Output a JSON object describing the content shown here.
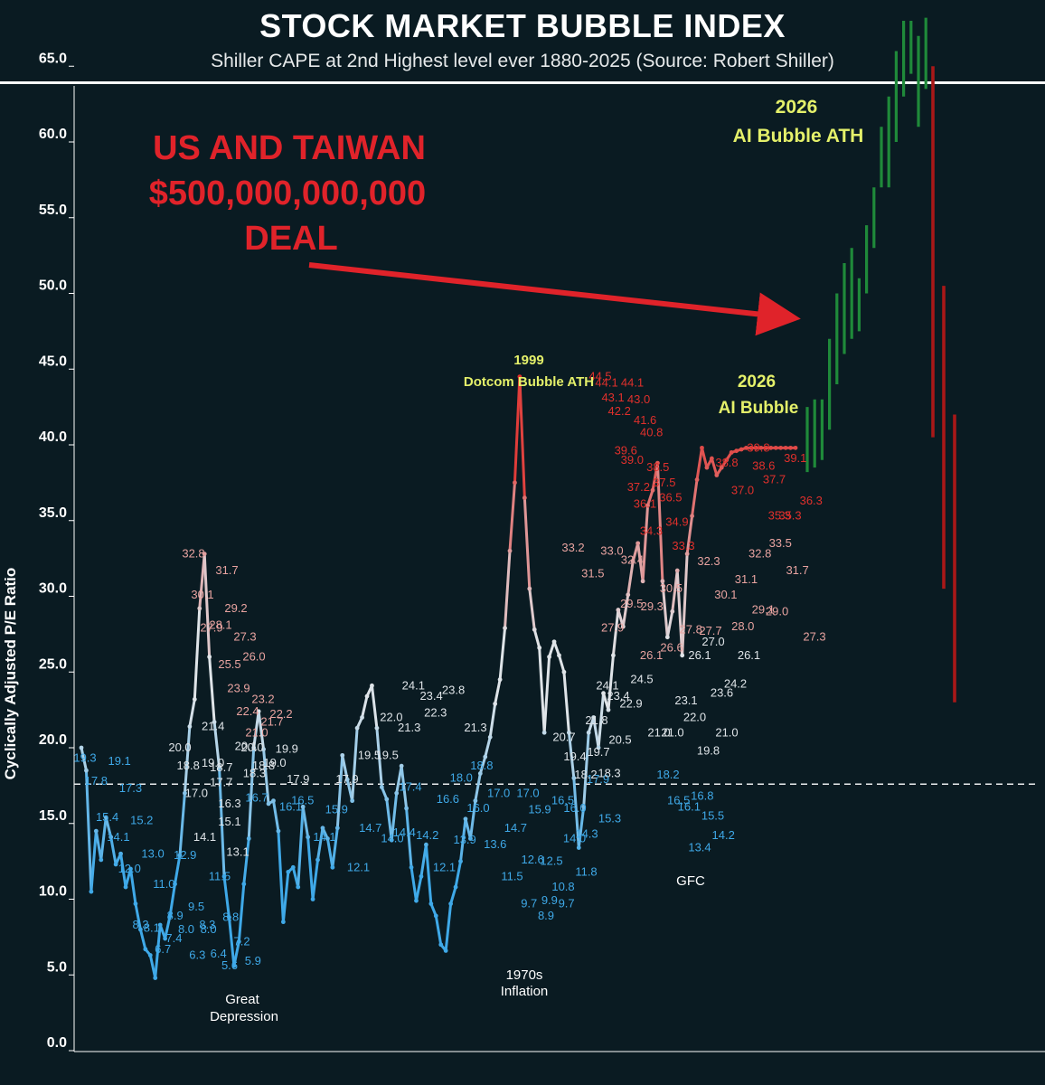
{
  "header": {
    "title": "STOCK MARKET BUBBLE  INDEX",
    "subtitle": "Shiller CAPE at 2nd Highest level ever 1880-2025 (Source: Robert Shiller)"
  },
  "annotations": {
    "deal_line1": "US AND TAIWAN",
    "deal_line2": "$500,000,000,000",
    "deal_line3": "DEAL",
    "dotcom_year": "1999",
    "dotcom_text": "Dotcom Bubble ATH",
    "ai_year": "2026",
    "ai_text": "AI Bubble",
    "ath_year": "2026",
    "ath_text": "AI Bubble ATH",
    "great_depression_1": "Great",
    "great_depression_2": "Depression",
    "inflation_1": "1970s",
    "inflation_2": "Inflation",
    "gfc": "GFC"
  },
  "colors": {
    "background": "#0a1b22",
    "low": "#3fa9e8",
    "mid": "#dfe4e8",
    "high": "#e0302c",
    "green_candle": "#1f8a3a",
    "red_candle": "#a81818",
    "arrow": "#e0232a",
    "yellow_text": "#e4f06a"
  },
  "chart_data": {
    "type": "line",
    "title": "STOCK MARKET BUBBLE  INDEX",
    "subtitle": "Shiller CAPE at 2nd Highest level ever 1880-2025 (Source: Robert Shiller)",
    "xlabel": "",
    "ylabel": "Cyclically Adjusted P/E Ratio",
    "ylim": [
      0,
      70
    ],
    "yticks": [
      "0.0",
      "5.0",
      "10.0",
      "15.0",
      "20.0",
      "25.0",
      "30.0",
      "35.0",
      "40.0",
      "45.0",
      "50.0",
      "55.0",
      "60.0",
      "65.0"
    ],
    "x_start": 1880,
    "x_end": 2025,
    "x_labels_shown": false,
    "grid": false,
    "reference_line": 17.6,
    "series": [
      {
        "x": [
          1880,
          1881,
          1882,
          1883,
          1884,
          1885,
          1886,
          1887,
          1888,
          1889,
          1890,
          1891,
          1892,
          1893,
          1894,
          1895,
          1896,
          1897,
          1898,
          1899,
          1900,
          1901,
          1902,
          1903,
          1904,
          1905,
          1906,
          1907,
          1908,
          1909,
          1910,
          1911,
          1912,
          1913,
          1914,
          1915,
          1916,
          1917,
          1918,
          1919,
          1920,
          1921,
          1922,
          1923,
          1924,
          1925,
          1926,
          1927,
          1928,
          1929,
          1930,
          1931,
          1932,
          1933,
          1934,
          1935,
          1936,
          1937,
          1938,
          1939,
          1940,
          1941,
          1942,
          1943,
          1944,
          1945,
          1946,
          1947,
          1948,
          1949,
          1950,
          1951,
          1952,
          1953,
          1954,
          1955,
          1956,
          1957,
          1958,
          1959,
          1960,
          1961,
          1962,
          1963,
          1964,
          1965,
          1966,
          1967,
          1968,
          1969,
          1970,
          1971,
          1972,
          1973,
          1974,
          1975,
          1976,
          1977,
          1978,
          1979,
          1980,
          1981,
          1982,
          1983,
          1984,
          1985,
          1986,
          1987,
          1988,
          1989,
          1990,
          1991,
          1992,
          1993,
          1994,
          1995,
          1996,
          1997,
          1998,
          1999,
          2000,
          2001,
          2002,
          2003,
          2004,
          2005,
          2006,
          2007,
          2008,
          2009,
          2010,
          2011,
          2012,
          2013,
          2014,
          2015,
          2016,
          2017,
          2018,
          2019,
          2020,
          2021,
          2022,
          2023,
          2024,
          2025
        ],
        "values": [
          20.0,
          18.5,
          10.5,
          14.5,
          12.6,
          15.4,
          14.1,
          12.3,
          13.0,
          10.8,
          12.0,
          9.7,
          8.0,
          6.7,
          6.3,
          4.8,
          8.3,
          7.4,
          8.9,
          11.0,
          12.9,
          17.0,
          21.4,
          23.2,
          29.2,
          32.8,
          26.0,
          21.7,
          18.7,
          11.5,
          8.8,
          5.6,
          7.2,
          11.0,
          14.0,
          20.0,
          22.4,
          19.9,
          16.3,
          16.5,
          14.5,
          8.5,
          11.8,
          12.1,
          10.8,
          16.1,
          14.1,
          10.0,
          12.6,
          14.7,
          14.0,
          12.1,
          14.7,
          19.5,
          17.9,
          16.5,
          21.3,
          22.0,
          23.4,
          24.1,
          21.3,
          17.4,
          16.6,
          13.9,
          17.0,
          18.8,
          16.0,
          12.1,
          9.9,
          11.5,
          13.6,
          9.7,
          8.9,
          7.0,
          6.6,
          9.7,
          10.8,
          12.5,
          15.3,
          14.0,
          16.5,
          18.3,
          19.4,
          20.7,
          22.9,
          24.5,
          27.9,
          33.0,
          37.5,
          44.5,
          36.5,
          30.5,
          27.8,
          26.6,
          21.0,
          26.0,
          27.0,
          26.1,
          25.0,
          21.0,
          18.0,
          13.4,
          16.1,
          21.0,
          22.0,
          20.0,
          23.6,
          22.5,
          26.1,
          29.1,
          28.0,
          30.1,
          32.3,
          33.5,
          31.0,
          36.0,
          37.0,
          38.8,
          31.0,
          27.3,
          29.0,
          31.7,
          26.1,
          32.8,
          35.3,
          37.7,
          39.8,
          38.5,
          39.1,
          38.0,
          38.5,
          39.0,
          39.5,
          39.6,
          39.7,
          39.8,
          39.8,
          39.8,
          39.8,
          39.8,
          39.8,
          39.8,
          39.8,
          39.8,
          39.8,
          39.8
        ]
      }
    ],
    "labels_blue": [
      "19.3",
      "19.1",
      "17.8",
      "17.3",
      "15.4",
      "15.2",
      "14.1",
      "13.0",
      "12.0",
      "11.0",
      "8.3",
      "8.9",
      "8.1",
      "8.0",
      "6.7",
      "6.3",
      "7.4",
      "8.0",
      "12.9",
      "11.5",
      "9.5",
      "8.8",
      "8.3",
      "7.2",
      "6.4",
      "5.9",
      "5.6",
      "16.7",
      "16.5",
      "16.1",
      "15.9",
      "14.1",
      "14.7",
      "12.1",
      "14.4",
      "14.0",
      "17.4",
      "16.6",
      "14.2",
      "13.9",
      "12.1",
      "18.8",
      "18.0",
      "17.0",
      "16.0",
      "14.7",
      "13.6",
      "12.6",
      "11.5",
      "9.9",
      "9.7",
      "9.7",
      "8.9",
      "17.0",
      "16.5",
      "15.9",
      "14.0",
      "12.5",
      "11.8",
      "10.8",
      "17.9",
      "16.0",
      "15.3",
      "14.3",
      "18.2",
      "16.8",
      "16.5",
      "15.5",
      "16.1",
      "14.2",
      "13.4"
    ],
    "labels_white": [
      "20.0",
      "19.0",
      "18.8",
      "17.7",
      "17.0",
      "15.1",
      "14.1",
      "13.1",
      "21.4",
      "20.1",
      "18.7",
      "18.3",
      "16.3",
      "20.0",
      "19.9",
      "18.8",
      "17.9",
      "19.0",
      "17.9",
      "19.5",
      "19.5",
      "21.3",
      "22.0",
      "23.4",
      "24.1",
      "23.8",
      "22.3",
      "21.3",
      "20.7",
      "19.7",
      "19.4",
      "18.3",
      "18.2",
      "20.5",
      "21.8",
      "22.9",
      "24.1",
      "24.5",
      "23.4",
      "21.0",
      "22.0",
      "21.0",
      "19.8",
      "23.1",
      "23.6",
      "26.1",
      "24.2",
      "27.0",
      "26.1",
      "21.0"
    ],
    "labels_pink": [
      "32.8",
      "31.7",
      "30.1",
      "29.2",
      "27.9",
      "27.3",
      "28.1",
      "26.0",
      "25.5",
      "23.2",
      "23.9",
      "21.7",
      "22.4",
      "22.2",
      "21.0",
      "33.2",
      "33.0",
      "31.5",
      "29.5",
      "27.9",
      "26.1",
      "32.4",
      "30.5",
      "29.3",
      "27.8",
      "26.6",
      "27.7",
      "32.3",
      "31.1",
      "30.1",
      "29.1",
      "28.0",
      "33.5",
      "32.8",
      "31.7",
      "29.0",
      "27.3"
    ],
    "labels_red": [
      "44.5",
      "44.1",
      "44.1",
      "43.0",
      "43.1",
      "41.6",
      "42.2",
      "40.8",
      "39.6",
      "38.5",
      "39.0",
      "37.5",
      "37.2",
      "36.5",
      "36.1",
      "34.9",
      "34.3",
      "33.3",
      "38.8",
      "38.6",
      "37.0",
      "35.3",
      "39.8",
      "39.1",
      "37.7",
      "36.3",
      "35.3"
    ],
    "projection_candles": [
      {
        "dir": "up",
        "low": 38.2,
        "high": 42.5
      },
      {
        "dir": "up",
        "low": 38.5,
        "high": 43.0
      },
      {
        "dir": "up",
        "low": 39.0,
        "high": 43.0
      },
      {
        "dir": "up",
        "low": 41.0,
        "high": 47.0
      },
      {
        "dir": "up",
        "low": 44.0,
        "high": 50.0
      },
      {
        "dir": "up",
        "low": 46.0,
        "high": 52.0
      },
      {
        "dir": "up",
        "low": 47.0,
        "high": 53.0
      },
      {
        "dir": "up",
        "low": 47.5,
        "high": 51.0
      },
      {
        "dir": "up",
        "low": 50.0,
        "high": 54.5
      },
      {
        "dir": "up",
        "low": 53.0,
        "high": 57.0
      },
      {
        "dir": "up",
        "low": 57.0,
        "high": 61.0
      },
      {
        "dir": "up",
        "low": 57.0,
        "high": 63.0
      },
      {
        "dir": "up",
        "low": 60.0,
        "high": 66.0
      },
      {
        "dir": "up",
        "low": 63.0,
        "high": 68.0
      },
      {
        "dir": "up",
        "low": 64.5,
        "high": 68.0
      },
      {
        "dir": "up",
        "low": 61.0,
        "high": 67.0
      },
      {
        "dir": "up",
        "low": 63.5,
        "high": 68.2
      },
      {
        "dir": "down",
        "low": 40.5,
        "high": 65.0
      },
      {
        "dir": "down",
        "low": 30.5,
        "high": 50.5
      },
      {
        "dir": "down",
        "low": 23.0,
        "high": 42.0
      }
    ]
  }
}
